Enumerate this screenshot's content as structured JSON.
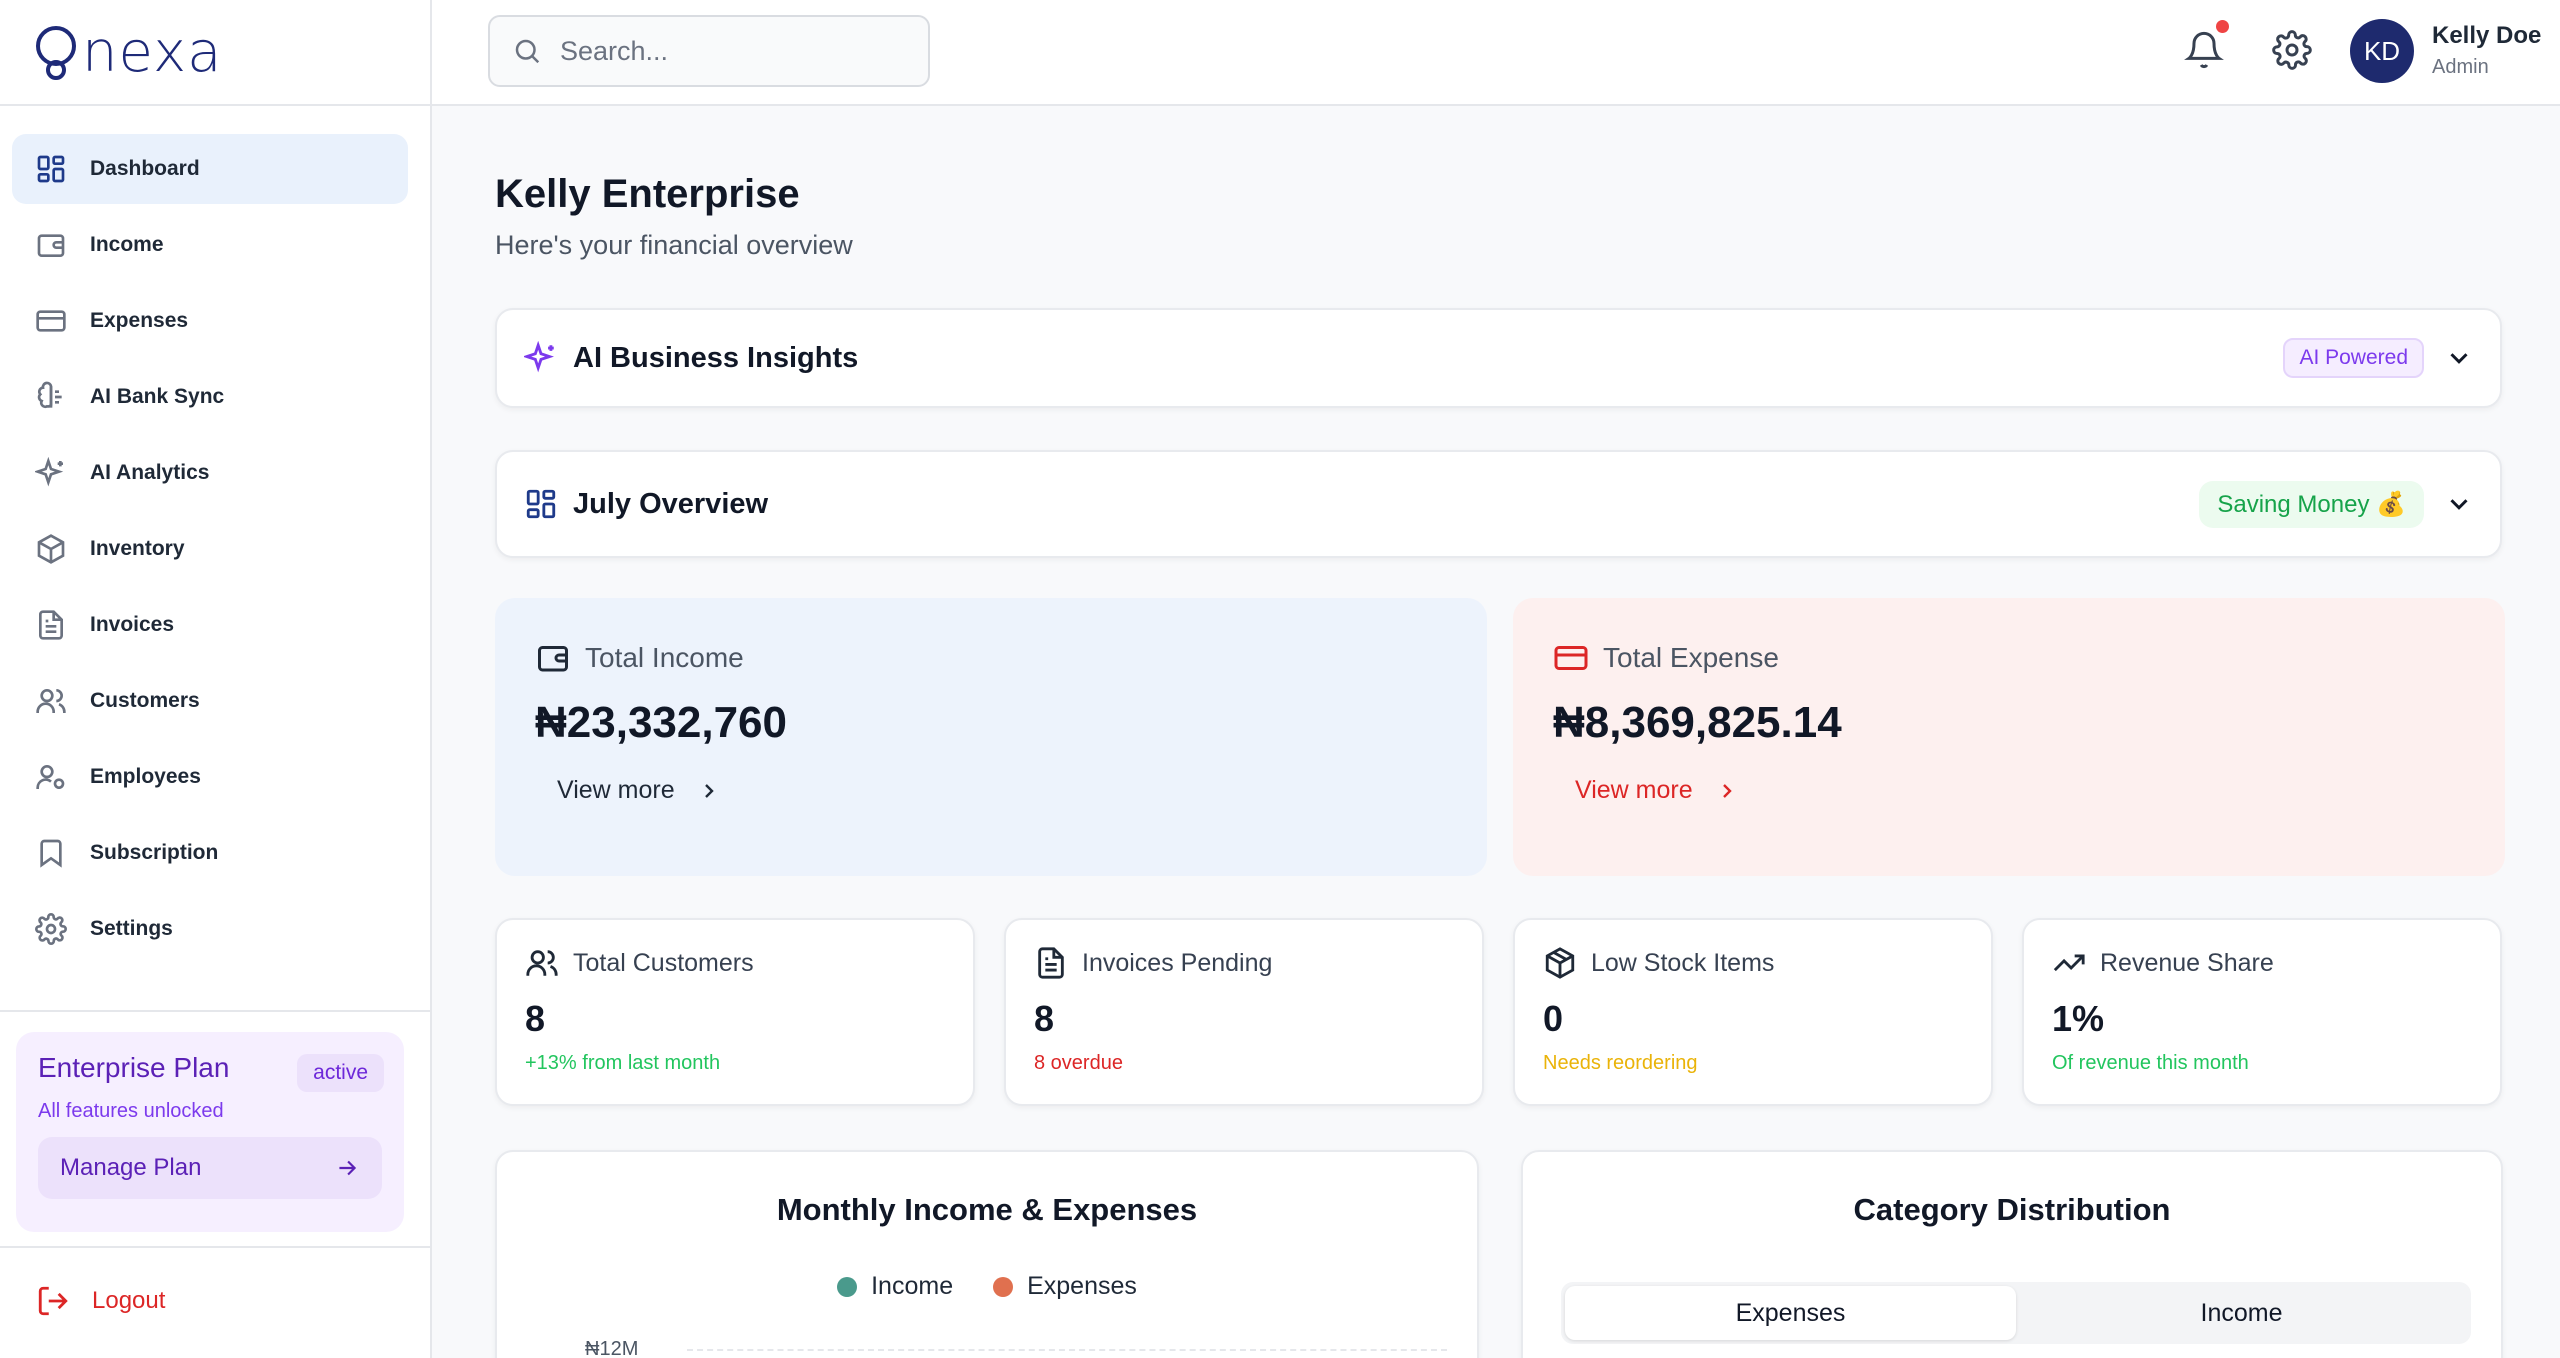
{
  "brand": {
    "name": "nexa",
    "logo_letter": "Q"
  },
  "sidebar": {
    "items": [
      {
        "label": "Dashboard",
        "icon": "grid-icon",
        "active": true
      },
      {
        "label": "Income",
        "icon": "wallet-icon"
      },
      {
        "label": "Expenses",
        "icon": "credit-card-icon"
      },
      {
        "label": "AI Bank Sync",
        "icon": "brain-icon"
      },
      {
        "label": "AI Analytics",
        "icon": "sparkles-icon"
      },
      {
        "label": "Inventory",
        "icon": "package-icon"
      },
      {
        "label": "Invoices",
        "icon": "file-text-icon"
      },
      {
        "label": "Customers",
        "icon": "users-icon"
      },
      {
        "label": "Employees",
        "icon": "user-cog-icon"
      },
      {
        "label": "Subscription",
        "icon": "bookmark-icon"
      },
      {
        "label": "Settings",
        "icon": "gear-icon"
      }
    ],
    "plan": {
      "title": "Enterprise Plan",
      "badge": "active",
      "subtitle": "All features unlocked",
      "button": "Manage Plan"
    },
    "logout": "Logout"
  },
  "header": {
    "search_placeholder": "Search...",
    "user": {
      "initials": "KD",
      "name": "Kelly Doe",
      "role": "Admin"
    }
  },
  "main": {
    "title": "Kelly Enterprise",
    "subtitle": "Here's your financial overview",
    "insights": {
      "title": "AI Business Insights",
      "badge": "AI Powered"
    },
    "overview": {
      "title": "July Overview",
      "badge": "Saving Money 💰"
    },
    "total_income": {
      "label": "Total Income",
      "value": "₦23,332,760",
      "link": "View more"
    },
    "total_expense": {
      "label": "Total Expense",
      "value": "₦8,369,825.14",
      "link": "View more"
    },
    "stats": [
      {
        "label": "Total Customers",
        "value": "8",
        "note": "+13% from last month",
        "note_color": "#22c55e",
        "icon": "users-icon"
      },
      {
        "label": "Invoices Pending",
        "value": "8",
        "note": "8 overdue",
        "note_color": "#dc2626",
        "icon": "file-text-icon"
      },
      {
        "label": "Low Stock Items",
        "value": "0",
        "note": "Needs reordering",
        "note_color": "#eab308",
        "icon": "boxes-icon"
      },
      {
        "label": "Revenue Share",
        "value": "1%",
        "note": "Of revenue this month",
        "note_color": "#22c55e",
        "icon": "trending-up-icon"
      }
    ],
    "monthly_chart": {
      "title": "Monthly Income & Expenses",
      "legend": [
        {
          "name": "Income",
          "color": "#4a9a8c"
        },
        {
          "name": "Expenses",
          "color": "#e0704f"
        }
      ],
      "ytick": "₦12M"
    },
    "category_chart": {
      "title": "Category Distribution",
      "tabs": [
        "Expenses",
        "Income"
      ]
    }
  },
  "colors": {
    "accent": "#1e2a78",
    "income_bg": "#edf3fc",
    "expense_bg": "#fdf0ef",
    "danger": "#dc2626"
  }
}
